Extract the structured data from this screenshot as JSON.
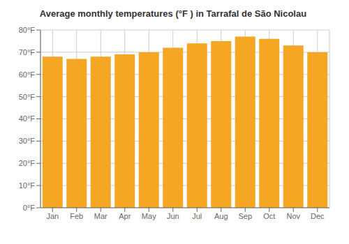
{
  "chart_data": {
    "type": "bar",
    "title": "Average monthly temperatures (°F ) in Tarrafal de São Nicolau",
    "categories": [
      "Jan",
      "Feb",
      "Mar",
      "Apr",
      "May",
      "Jun",
      "Jul",
      "Aug",
      "Sep",
      "Oct",
      "Nov",
      "Dec"
    ],
    "values": [
      68,
      67,
      68,
      69,
      70,
      72,
      74,
      75,
      77,
      76,
      73,
      70
    ],
    "color": "#F5A623",
    "ylim": [
      0,
      80
    ],
    "yticks": [
      {
        "value": 0,
        "label": "0°F"
      },
      {
        "value": 10,
        "label": "10°F"
      },
      {
        "value": 20,
        "label": "20°F"
      },
      {
        "value": 30,
        "label": "30°F"
      },
      {
        "value": 40,
        "label": "40°F"
      },
      {
        "value": 50,
        "label": "50°F"
      },
      {
        "value": 60,
        "label": "60°F"
      },
      {
        "value": 70,
        "label": "70°F"
      },
      {
        "value": 80,
        "label": "80°F"
      }
    ],
    "grid": true
  }
}
